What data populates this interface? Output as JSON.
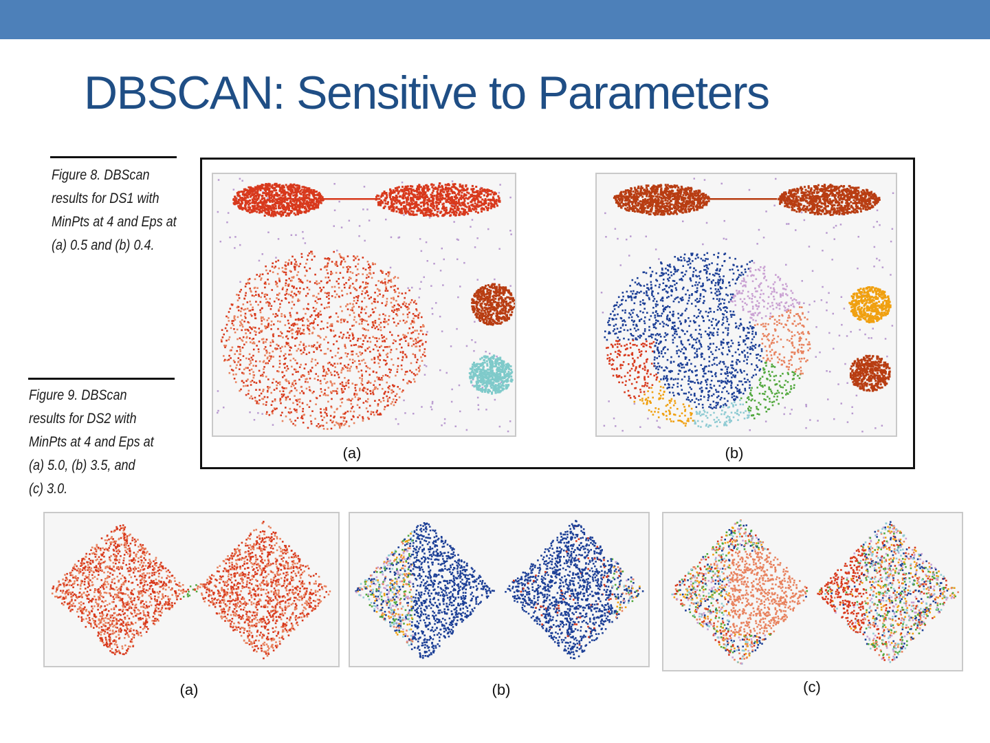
{
  "slide": {
    "title": "DBSCAN: Sensitive to Parameters",
    "band_color": "#4d80b9",
    "title_color": "#1f4e85"
  },
  "figure8": {
    "caption": "Figure 8. DBScan\nresults for DS1 with\nMinPts at 4 and Eps at\n(a) 0.5 and (b) 0.4.",
    "panels": [
      {
        "label": "(a)",
        "description": "Eps 0.5"
      },
      {
        "label": "(b)",
        "description": "Eps 0.4"
      }
    ]
  },
  "figure9": {
    "caption": "Figure 9. DBScan\nresults for DS2 with\nMinPts at 4 and Eps at\n(a) 5.0, (b) 3.5, and\n(c) 3.0.",
    "panels": [
      {
        "label": "(a)",
        "description": "Eps 5.0"
      },
      {
        "label": "(b)",
        "description": "Eps 3.5"
      },
      {
        "label": "(c)",
        "description": "Eps 3.0"
      }
    ]
  },
  "colors": {
    "red": "#d8391c",
    "salmon": "#e8825e",
    "rust": "#b83d12",
    "teal": "#7fcaca",
    "orange": "#f0a010",
    "navy": "#1c3f96",
    "lilac": "#c9a0d2",
    "green": "#52a83e",
    "lightblue": "#8fcbd3",
    "noise": "#b99bd0"
  }
}
